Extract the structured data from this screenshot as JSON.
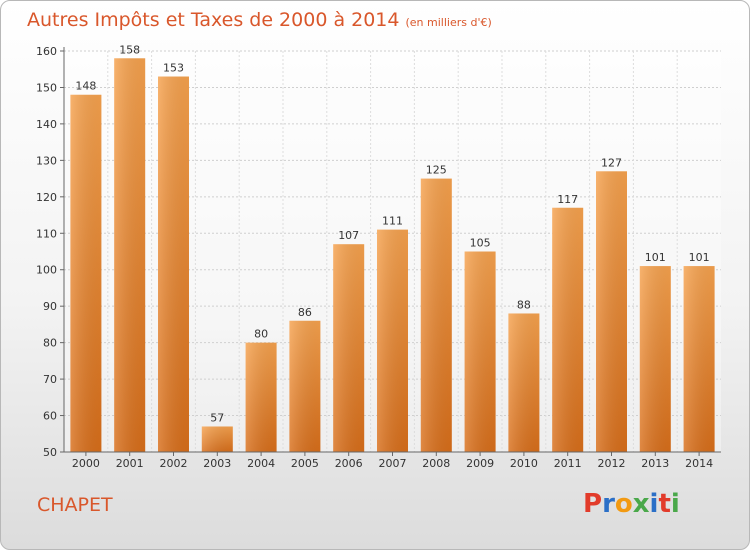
{
  "chart_data": {
    "type": "bar",
    "title": "Autres Impôts et Taxes de 2000 à 2014",
    "subtitle": "(en milliers d'€)",
    "categories": [
      "2000",
      "2001",
      "2002",
      "2003",
      "2004",
      "2005",
      "2006",
      "2007",
      "2008",
      "2009",
      "2010",
      "2011",
      "2012",
      "2013",
      "2014"
    ],
    "values": [
      148,
      158,
      153,
      57,
      80,
      86,
      107,
      111,
      125,
      105,
      88,
      117,
      127,
      101,
      101
    ],
    "ylim": [
      50,
      160
    ],
    "yticks": [
      50,
      60,
      70,
      80,
      90,
      100,
      110,
      120,
      130,
      140,
      150,
      160
    ],
    "xlabel": "",
    "ylabel": "",
    "grid": true,
    "bar_color": "#f0892e"
  },
  "footer": {
    "commune": "CHAPET",
    "logo": [
      "P",
      "r",
      "o",
      "x",
      "i",
      "t",
      "i"
    ]
  }
}
